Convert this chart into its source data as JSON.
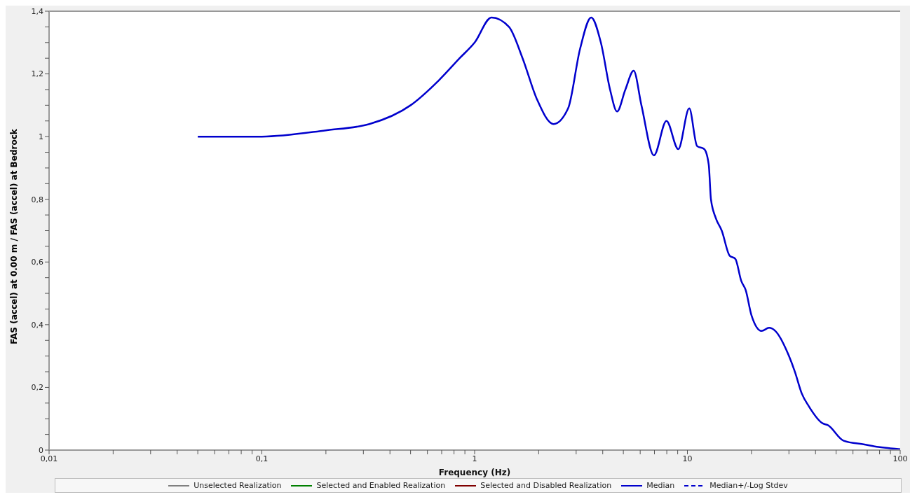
{
  "chart_data": {
    "type": "line",
    "xlabel": "Frequency (Hz)",
    "ylabel": "FAS (accel) at 0.00 m / FAS (accel) at Bedrock",
    "log": "x",
    "grid": false,
    "legend": "bottom",
    "marker": "none",
    "xlim": [
      0.01,
      100
    ],
    "xticks": [
      {
        "value": 0.01,
        "label": "0,01"
      },
      {
        "value": 0.02,
        "label": null
      },
      {
        "value": 0.03,
        "label": null
      },
      {
        "value": 0.04,
        "label": null
      },
      {
        "value": 0.05,
        "label": null
      },
      {
        "value": 0.06,
        "label": null
      },
      {
        "value": 0.07,
        "label": null
      },
      {
        "value": 0.08,
        "label": null
      },
      {
        "value": 0.09,
        "label": null
      },
      {
        "value": 0.1,
        "label": "0,1"
      },
      {
        "value": 0.2,
        "label": null
      },
      {
        "value": 0.3,
        "label": null
      },
      {
        "value": 0.4,
        "label": null
      },
      {
        "value": 0.5,
        "label": null
      },
      {
        "value": 0.6,
        "label": null
      },
      {
        "value": 0.7,
        "label": null
      },
      {
        "value": 0.8,
        "label": null
      },
      {
        "value": 0.9,
        "label": null
      },
      1,
      {
        "value": 2,
        "label": null
      },
      {
        "value": 3,
        "label": null
      },
      {
        "value": 4,
        "label": null
      },
      {
        "value": 5,
        "label": null
      },
      {
        "value": 6,
        "label": null
      },
      {
        "value": 7,
        "label": null
      },
      {
        "value": 8,
        "label": null
      },
      {
        "value": 9,
        "label": null
      },
      10,
      {
        "value": 20,
        "label": null
      },
      {
        "value": 30,
        "label": null
      },
      {
        "value": 40,
        "label": null
      },
      {
        "value": 50,
        "label": null
      },
      {
        "value": 60,
        "label": null
      },
      {
        "value": 70,
        "label": null
      },
      {
        "value": 80,
        "label": null
      },
      {
        "value": 90,
        "label": null
      },
      100
    ],
    "ylim": [
      0,
      1.4
    ],
    "yticks": [
      0,
      {
        "value": 0.05,
        "label": null
      },
      {
        "value": 0.1,
        "label": null
      },
      {
        "value": 0.15,
        "label": null
      },
      {
        "value": 0.2,
        "label": "0,2"
      },
      {
        "value": 0.25,
        "label": null
      },
      {
        "value": 0.3,
        "label": null
      },
      {
        "value": 0.35,
        "label": null
      },
      {
        "value": 0.4,
        "label": "0,4"
      },
      {
        "value": 0.45,
        "label": null
      },
      {
        "value": 0.5,
        "label": null
      },
      {
        "value": 0.55,
        "label": null
      },
      {
        "value": 0.6,
        "label": "0,6"
      },
      {
        "value": 0.65,
        "label": null
      },
      {
        "value": 0.7,
        "label": null
      },
      {
        "value": 0.75,
        "label": null
      },
      {
        "value": 0.8,
        "label": "0,8"
      },
      {
        "value": 0.85,
        "label": null
      },
      {
        "value": 0.9,
        "label": null
      },
      {
        "value": 0.95,
        "label": null
      },
      1,
      {
        "value": 1.05,
        "label": null
      },
      {
        "value": 1.1,
        "label": null
      },
      {
        "value": 1.15,
        "label": null
      },
      {
        "value": 1.2,
        "label": "1,2"
      },
      {
        "value": 1.25,
        "label": null
      },
      {
        "value": 1.3,
        "label": null
      },
      {
        "value": 1.35,
        "label": null
      },
      {
        "value": 1.4,
        "label": "1,4"
      }
    ],
    "series": [
      {
        "name": "Unselected Realization",
        "color": "#808080",
        "line_style": "solid"
      },
      {
        "name": "Selected and Enabled Realization",
        "color": "#008000",
        "line_style": "solid"
      },
      {
        "name": "Selected and Disabled Realization",
        "color": "#800000",
        "line_style": "solid"
      },
      {
        "name": "Median",
        "color": "#0000cd",
        "line_style": "solid",
        "x": [
          0.05,
          0.1,
          0.2,
          0.32,
          0.5,
          0.68,
          0.85,
          1,
          1.2,
          1.45,
          1.68,
          1.96,
          2.35,
          2.75,
          3.13,
          3.53,
          3.92,
          4.33,
          4.67,
          5.11,
          5.59,
          6.08,
          6.96,
          7.97,
          9.06,
          10.2,
          11.1,
          12,
          12.6,
          12.9,
          13.6,
          14.5,
          15.8,
          16.8,
          17.9,
          18.8,
          20,
          22.3,
          24.2,
          25.9,
          29.6,
          32,
          34.5,
          37.2,
          43.3,
          45.6,
          54.2,
          68,
          79.1,
          100
        ],
        "values": [
          1,
          1,
          1.02,
          1.04,
          1.1,
          1.18,
          1.25,
          1.3,
          1.38,
          1.35,
          1.25,
          1.12,
          1.04,
          1.09,
          1.28,
          1.38,
          1.3,
          1.15,
          1.08,
          1.15,
          1.21,
          1.1,
          0.94,
          1.05,
          0.96,
          1.09,
          0.97,
          0.96,
          0.91,
          0.8,
          0.74,
          0.7,
          0.62,
          0.61,
          0.54,
          0.51,
          0.43,
          0.38,
          0.39,
          0.38,
          0.31,
          0.25,
          0.18,
          0.14,
          0.085,
          0.08,
          0.03,
          0.018,
          0.01,
          0.003
        ]
      },
      {
        "name": "Median+/-Log Stdev",
        "color": "#0000cd",
        "line_style": "dashed"
      }
    ]
  }
}
